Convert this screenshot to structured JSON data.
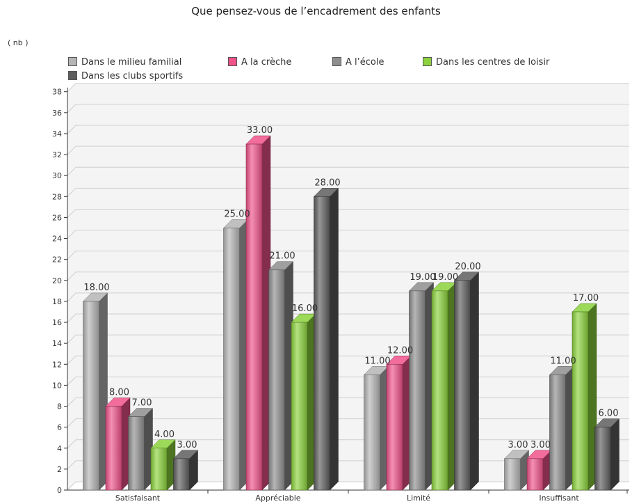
{
  "chart_data": {
    "type": "bar",
    "title": "Que pensez-vous de l’encadrement des enfants",
    "ylabel": "( nb )",
    "xlabel": "",
    "categories": [
      "Satisfaisant",
      "Appréciable",
      "Limité",
      "Insuffisant"
    ],
    "series": [
      {
        "name": "Dans le milieu familial",
        "color": "#b5b5b5",
        "values": [
          18,
          25,
          11,
          3
        ]
      },
      {
        "name": "A la crèche",
        "color": "#f0528a",
        "values": [
          8,
          33,
          12,
          3
        ]
      },
      {
        "name": "A l’école",
        "color": "#8e8e8e",
        "values": [
          7,
          21,
          19,
          11
        ]
      },
      {
        "name": "Dans les centres de loisir",
        "color": "#8bd23c",
        "values": [
          4,
          16,
          19,
          17
        ]
      },
      {
        "name": "Dans les clubs sportifs",
        "color": "#5e5e5e",
        "values": [
          3,
          28,
          20,
          6
        ]
      }
    ],
    "ylim": [
      0,
      38
    ],
    "y_ticks": [
      0,
      2,
      4,
      6,
      8,
      10,
      12,
      14,
      16,
      18,
      20,
      22,
      24,
      26,
      28,
      30,
      32,
      34,
      36,
      38
    ],
    "value_labels": [
      [
        "18.00",
        "25.00",
        "11.00",
        "3.00"
      ],
      [
        "8.00",
        "33.00",
        "12.00",
        "3.00"
      ],
      [
        "7.00",
        "21.00",
        "19.00",
        "11.00"
      ],
      [
        "4.00",
        "16.00",
        "19.00",
        "17.00"
      ],
      [
        "3.00",
        "28.00",
        "20.00",
        "6.00"
      ]
    ],
    "grid": true,
    "three_d": true,
    "legend_position": "top-left"
  }
}
